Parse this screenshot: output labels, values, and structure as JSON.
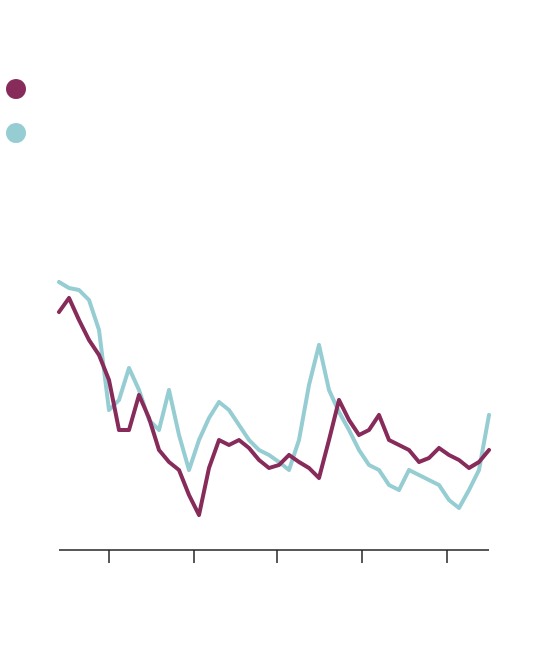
{
  "chart_data": {
    "type": "line",
    "title": "",
    "xlabel": "",
    "ylabel": "",
    "grid": false,
    "legend_position": "top-left",
    "x": [
      0,
      10,
      20,
      30,
      40,
      50,
      60,
      70,
      80,
      90,
      100,
      110,
      120,
      130,
      140,
      150,
      160,
      170,
      180,
      190,
      200,
      210,
      220,
      230,
      240,
      250,
      260,
      270,
      280,
      290,
      300,
      310,
      320,
      330,
      340,
      350,
      360,
      370,
      380,
      390,
      400,
      410,
      420,
      430
    ],
    "series": [
      {
        "name": "",
        "color": "#862b5a",
        "values": [
          312,
          298,
          320,
          340,
          355,
          380,
          430,
          430,
          395,
          418,
          450,
          462,
          470,
          495,
          515,
          468,
          440,
          445,
          440,
          448,
          460,
          468,
          465,
          455,
          462,
          468,
          478,
          440,
          400,
          420,
          435,
          430,
          415,
          440,
          445,
          450,
          462,
          458,
          448,
          455,
          460,
          468,
          462,
          450
        ]
      },
      {
        "name": "",
        "color": "#95cdd3",
        "values": [
          282,
          288,
          290,
          300,
          330,
          410,
          400,
          368,
          390,
          420,
          430,
          390,
          435,
          470,
          440,
          418,
          402,
          410,
          425,
          440,
          450,
          455,
          462,
          470,
          440,
          385,
          345,
          390,
          412,
          430,
          450,
          465,
          470,
          485,
          490,
          470,
          475,
          480,
          485,
          500,
          508,
          490,
          470,
          415
        ]
      }
    ],
    "xlim": [
      0,
      430
    ],
    "ylim": [
      250,
      550
    ],
    "x_ticks": [
      50,
      135,
      218,
      303,
      388
    ]
  }
}
